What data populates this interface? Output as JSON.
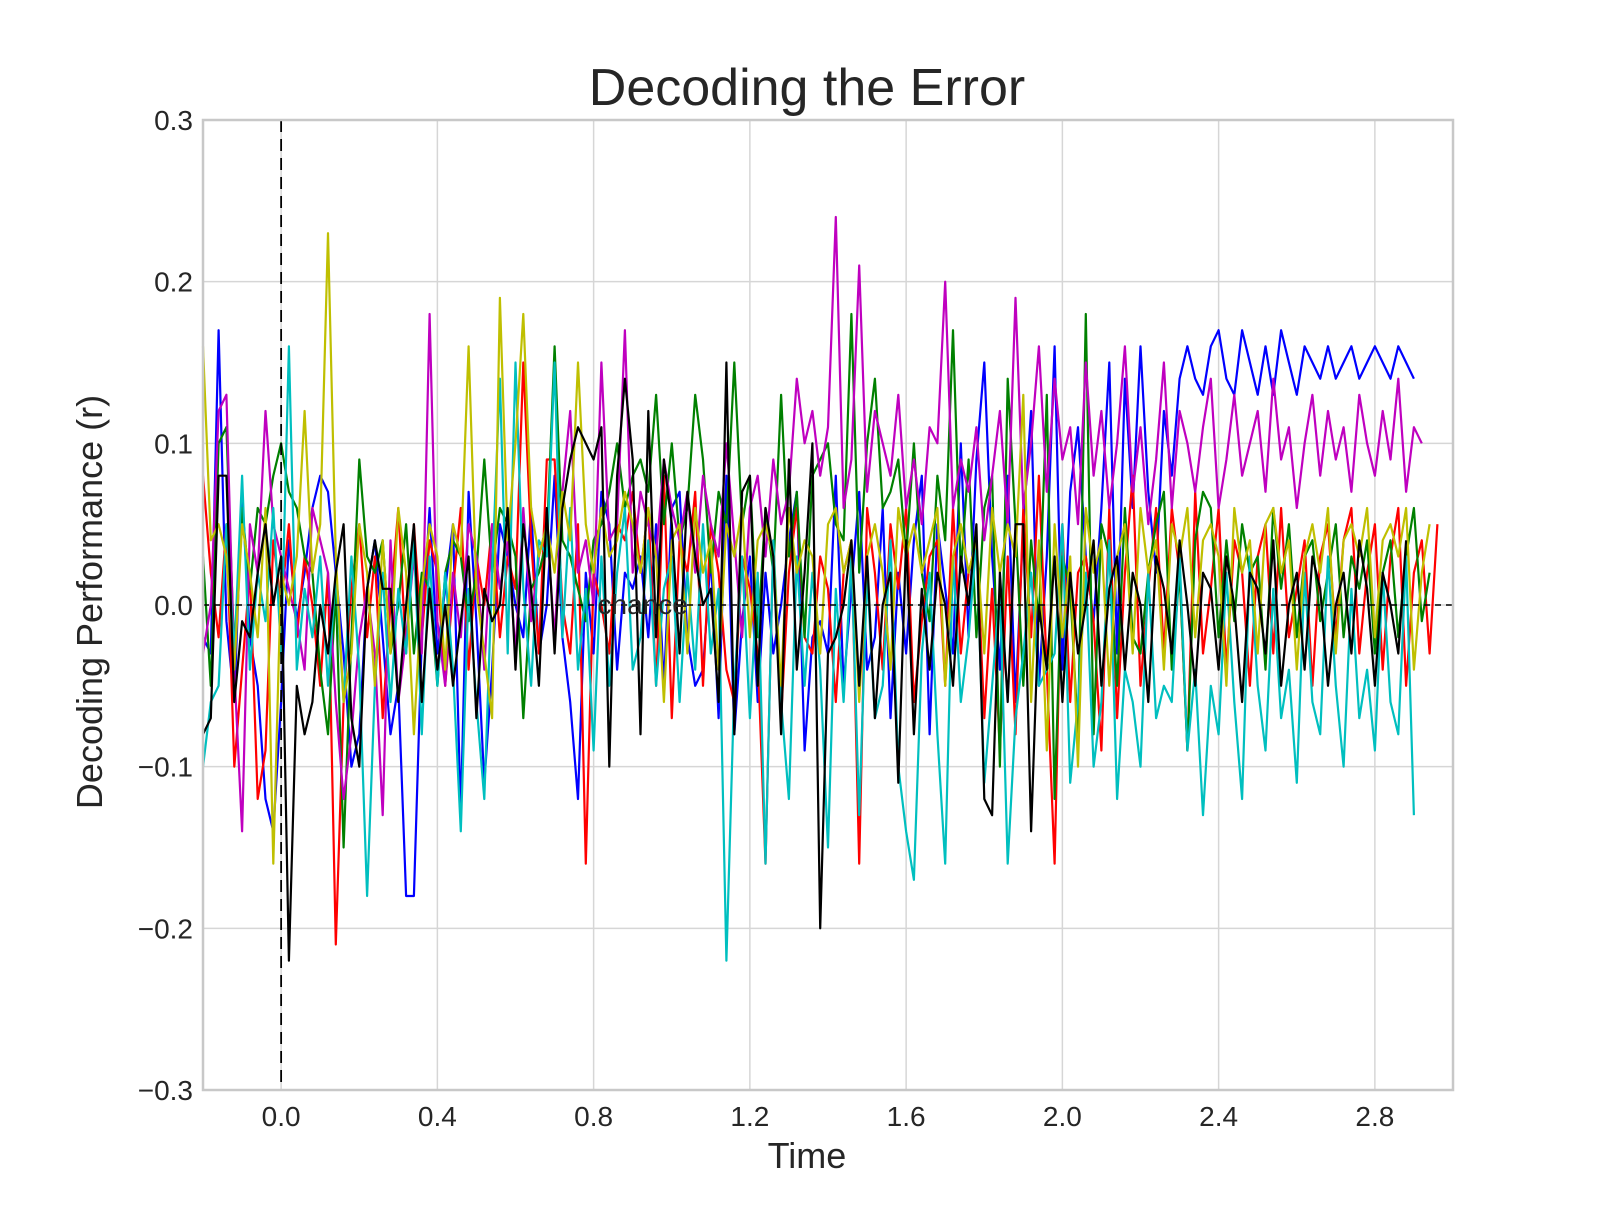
{
  "chart_data": {
    "type": "line",
    "title": "Decoding the Error",
    "xlabel": "Time",
    "ylabel": "Decoding Performance (r)",
    "xlim": [
      -0.2,
      3.0
    ],
    "ylim": [
      -0.3,
      0.3
    ],
    "xticks": [
      "0.0",
      "0.4",
      "0.8",
      "1.2",
      "1.6",
      "2.0",
      "2.4",
      "2.8"
    ],
    "xtick_values": [
      0.0,
      0.4,
      0.8,
      1.2,
      1.6,
      2.0,
      2.4,
      2.8
    ],
    "yticks": [
      "0.3",
      "0.2",
      "0.1",
      "0.0",
      "−0.1",
      "−0.2",
      "−0.3"
    ],
    "ytick_values": [
      0.3,
      0.2,
      0.1,
      0.0,
      -0.1,
      -0.2,
      -0.3
    ],
    "grid": true,
    "annotations": [
      {
        "text": "chance",
        "x": 0.81,
        "y": 0.0
      }
    ],
    "reference_lines": [
      {
        "orientation": "horizontal",
        "value": 0.0,
        "style": "dashed"
      },
      {
        "orientation": "vertical",
        "value": 0.0,
        "style": "dashed"
      }
    ],
    "x_start": -0.2,
    "x_step": 0.02,
    "series": [
      {
        "color": "#0000ff",
        "values": [
          -0.02,
          -0.03,
          0.17,
          -0.01,
          -0.06,
          0.07,
          -0.02,
          -0.05,
          -0.12,
          -0.14,
          -0.06,
          0.04,
          -0.01,
          0.02,
          0.06,
          0.08,
          0.07,
          0.02,
          -0.03,
          -0.1,
          -0.08,
          0.01,
          0.04,
          -0.02,
          -0.08,
          -0.05,
          -0.18,
          -0.18,
          -0.02,
          0.06,
          -0.03,
          0.01,
          0.05,
          -0.13,
          0.07,
          -0.01,
          -0.11,
          -0.04,
          0.05,
          0.03,
          0.0,
          -0.02,
          0.06,
          -0.03,
          0.0,
          0.08,
          -0.02,
          -0.06,
          -0.12,
          0.02,
          -0.03,
          0.07,
          0.05,
          -0.04,
          0.02,
          0.01,
          0.03,
          -0.02,
          0.05,
          -0.05,
          0.06,
          0.07,
          -0.02,
          -0.05,
          -0.04,
          0.03,
          -0.07,
          0.08,
          -0.08,
          -0.01,
          0.03,
          -0.06,
          0.02,
          -0.03,
          0.0,
          0.04,
          0.07,
          -0.09,
          -0.02,
          -0.01,
          -0.03,
          0.08,
          -0.05,
          0.01,
          0.07,
          -0.04,
          -0.02,
          0.06,
          -0.07,
          0.02,
          -0.03,
          0.04,
          0.08,
          -0.08,
          0.05,
          0.01,
          -0.03,
          0.1,
          -0.02,
          0.09,
          0.15,
          0.03,
          -0.04,
          0.08,
          -0.06,
          0.05,
          0.12,
          -0.05,
          0.03,
          0.16,
          -0.04,
          0.07,
          0.11,
          0.03,
          -0.01,
          0.06,
          0.15,
          -0.03,
          0.14,
          0.06,
          0.16,
          0.07,
          0.02,
          0.12,
          0.08,
          0.14,
          0.16,
          0.14,
          0.13,
          0.16,
          0.17,
          0.14,
          0.13,
          0.17,
          0.15,
          0.13,
          0.16,
          0.13,
          0.17,
          0.15,
          0.13,
          0.16,
          0.15,
          0.14,
          0.16,
          0.14,
          0.15,
          0.16,
          0.14,
          0.15,
          0.16,
          0.15,
          0.14,
          0.16,
          0.15,
          0.14
        ]
      },
      {
        "color": "#ff0000",
        "values": [
          0.08,
          0.02,
          -0.02,
          0.05,
          -0.1,
          -0.04,
          0.02,
          -0.12,
          -0.09,
          0.04,
          0.0,
          0.05,
          -0.02,
          0.03,
          0.0,
          -0.05,
          0.02,
          -0.21,
          -0.06,
          0.01,
          0.05,
          -0.02,
          0.03,
          -0.07,
          0.0,
          0.06,
          -0.03,
          0.05,
          -0.02,
          0.04,
          0.02,
          -0.05,
          0.01,
          0.06,
          -0.04,
          0.03,
          0.0,
          0.05,
          -0.02,
          0.03,
          0.01,
          0.15,
          0.04,
          -0.03,
          0.09,
          0.09,
          0.0,
          -0.03,
          0.05,
          -0.16,
          0.02,
          0.0,
          -0.03,
          0.05,
          0.04,
          0.07,
          0.02,
          0.06,
          -0.05,
          0.08,
          -0.07,
          0.04,
          0.02,
          0.07,
          -0.05,
          0.05,
          0.02,
          -0.04,
          -0.06,
          0.03,
          0.01,
          -0.03,
          -0.16,
          0.04,
          -0.07,
          0.02,
          0.06,
          -0.02,
          -0.03,
          0.03,
          0.01,
          -0.06,
          0.02,
          0.04,
          -0.16,
          0.06,
          0.02,
          -0.04,
          0.05,
          0.01,
          0.06,
          -0.06,
          -0.01,
          0.03,
          0.04,
          -0.05,
          0.06,
          -0.03,
          0.02,
          0.04,
          -0.07,
          0.01,
          -0.09,
          0.03,
          -0.08,
          0.06,
          -0.02,
          0.08,
          -0.04,
          -0.16,
          0.05,
          -0.06,
          0.02,
          0.03,
          -0.01,
          -0.09,
          0.06,
          -0.07,
          0.02,
          0.08,
          -0.05,
          0.01,
          0.06,
          -0.03,
          0.06,
          0.02,
          -0.09,
          0.07,
          -0.03,
          0.01,
          0.06,
          -0.04,
          0.04,
          0.02,
          -0.05,
          0.03,
          0.05,
          -0.03,
          0.06,
          -0.02,
          0.01,
          0.04,
          -0.05,
          0.03,
          0.05,
          -0.02,
          0.04,
          0.06,
          -0.03,
          0.02,
          0.05,
          -0.04,
          0.03,
          0.06,
          -0.05,
          0.02,
          0.04,
          -0.03,
          0.05
        ]
      },
      {
        "color": "#008000",
        "values": [
          0.03,
          -0.05,
          0.1,
          0.11,
          -0.03,
          0.06,
          0.01,
          0.06,
          0.05,
          0.08,
          0.1,
          0.07,
          0.06,
          0.03,
          0.02,
          -0.04,
          -0.08,
          0.01,
          -0.15,
          -0.02,
          0.09,
          0.03,
          0.02,
          0.04,
          -0.03,
          0.0,
          0.05,
          -0.03,
          0.02,
          0.01,
          -0.05,
          0.02,
          0.04,
          0.03,
          -0.01,
          0.02,
          0.09,
          0.02,
          0.06,
          0.05,
          0.03,
          -0.07,
          0.01,
          0.02,
          0.04,
          0.16,
          0.04,
          0.03,
          0.01,
          -0.01,
          0.04,
          0.05,
          0.07,
          0.1,
          0.06,
          0.08,
          0.09,
          0.07,
          0.13,
          0.05,
          0.1,
          0.04,
          0.06,
          0.13,
          0.09,
          0.02,
          0.07,
          0.05,
          0.15,
          0.05,
          0.08,
          -0.02,
          0.06,
          0.02,
          0.13,
          0.03,
          0.07,
          -0.02,
          0.08,
          0.09,
          0.1,
          0.05,
          0.04,
          0.18,
          0.02,
          0.1,
          0.14,
          0.06,
          0.07,
          0.09,
          0.03,
          0.1,
          0.02,
          -0.01,
          0.08,
          0.04,
          0.17,
          0.02,
          0.09,
          -0.02,
          0.06,
          0.08,
          -0.1,
          0.14,
          0.05,
          -0.05,
          0.04,
          -0.01,
          0.13,
          -0.12,
          0.03,
          0.01,
          -0.08,
          0.18,
          -0.08,
          0.05,
          0.03,
          -0.05,
          0.06,
          -0.02,
          -0.03,
          0.02,
          0.05,
          0.07,
          -0.04,
          0.02,
          -0.09,
          0.04,
          0.07,
          0.06,
          -0.02,
          0.04,
          -0.01,
          0.05,
          0.02,
          0.03,
          -0.04,
          0.06,
          0.01,
          0.05,
          -0.02,
          0.03,
          0.04,
          -0.01,
          0.02,
          0.05,
          -0.02,
          0.03,
          0.01,
          0.04,
          -0.03,
          0.02,
          0.04,
          -0.02,
          0.03,
          0.06,
          -0.01,
          0.02
        ]
      },
      {
        "color": "#bf00bf",
        "values": [
          -0.03,
          0.0,
          0.12,
          0.13,
          -0.04,
          -0.14,
          0.05,
          0.02,
          0.12,
          0.05,
          0.03,
          0.01,
          -0.01,
          -0.04,
          0.06,
          0.04,
          0.02,
          -0.06,
          -0.12,
          -0.08,
          -0.02,
          0.01,
          -0.03,
          -0.13,
          0.04,
          -0.06,
          -0.02,
          0.03,
          -0.03,
          0.18,
          -0.01,
          -0.05,
          0.02,
          -0.02,
          0.05,
          0.03,
          -0.04,
          0.05,
          0.01,
          0.04,
          -0.03,
          0.06,
          -0.01,
          0.03,
          0.05,
          -0.02,
          0.07,
          0.12,
          0.02,
          0.04,
          0.0,
          0.15,
          0.04,
          0.05,
          0.17,
          0.02,
          0.07,
          0.05,
          0.03,
          0.09,
          0.06,
          0.04,
          0.07,
          0.02,
          0.08,
          0.05,
          0.03,
          0.1,
          0.04,
          -0.02,
          0.06,
          0.08,
          0.03,
          0.09,
          0.05,
          0.07,
          0.14,
          0.1,
          0.12,
          0.08,
          0.11,
          0.24,
          0.06,
          0.09,
          0.21,
          0.07,
          0.12,
          0.1,
          0.08,
          0.13,
          0.06,
          0.09,
          0.05,
          0.11,
          0.1,
          0.2,
          0.06,
          0.09,
          0.07,
          0.11,
          0.04,
          0.08,
          0.12,
          0.05,
          0.19,
          0.06,
          0.1,
          0.16,
          0.07,
          0.14,
          0.09,
          0.11,
          0.05,
          0.15,
          0.08,
          0.12,
          0.06,
          0.1,
          0.16,
          0.07,
          0.11,
          0.05,
          0.09,
          0.15,
          0.06,
          0.12,
          0.1,
          0.07,
          0.11,
          0.14,
          0.06,
          0.09,
          0.13,
          0.08,
          0.1,
          0.12,
          0.07,
          0.14,
          0.09,
          0.11,
          0.06,
          0.1,
          0.13,
          0.08,
          0.12,
          0.09,
          0.11,
          0.07,
          0.13,
          0.1,
          0.08,
          0.12,
          0.09,
          0.14,
          0.07,
          0.11,
          0.1
        ]
      },
      {
        "color": "#00bfbf",
        "values": [
          -0.1,
          -0.06,
          -0.05,
          0.05,
          -0.03,
          0.08,
          -0.04,
          0.02,
          -0.01,
          0.06,
          -0.03,
          0.16,
          -0.04,
          0.01,
          -0.02,
          0.03,
          -0.05,
          0.02,
          -0.06,
          0.03,
          -0.04,
          -0.18,
          -0.05,
          0.02,
          -0.06,
          0.01,
          -0.03,
          0.04,
          -0.08,
          0.03,
          -0.05,
          0.02,
          -0.04,
          -0.14,
          0.01,
          -0.06,
          -0.12,
          0.02,
          0.14,
          -0.03,
          0.15,
          0.01,
          -0.05,
          0.04,
          0.03,
          0.15,
          -0.02,
          0.06,
          -0.04,
          0.01,
          -0.09,
          0.03,
          -0.05,
          0.02,
          0.06,
          -0.04,
          -0.02,
          0.04,
          -0.05,
          0.01,
          0.03,
          -0.06,
          0.02,
          -0.04,
          0.05,
          -0.03,
          0.01,
          -0.22,
          -0.05,
          0.03,
          -0.07,
          0.02,
          -0.16,
          0.04,
          -0.06,
          -0.12,
          0.03,
          -0.05,
          0.02,
          -0.04,
          -0.15,
          0.01,
          -0.06,
          0.03,
          -0.13,
          0.02,
          -0.07,
          -0.05,
          0.04,
          -0.1,
          -0.14,
          -0.17,
          -0.03,
          0.02,
          -0.08,
          -0.16,
          0.03,
          -0.06,
          -0.02,
          0.04,
          -0.11,
          -0.05,
          0.01,
          -0.16,
          -0.07,
          -0.03,
          0.02,
          -0.05,
          -0.04,
          -0.03,
          0.05,
          -0.11,
          -0.06,
          0.02,
          -0.1,
          -0.06,
          0.04,
          -0.12,
          -0.04,
          -0.06,
          -0.1,
          0.02,
          -0.07,
          -0.05,
          -0.06,
          0.03,
          -0.09,
          -0.04,
          -0.13,
          -0.05,
          -0.08,
          0.02,
          -0.06,
          -0.12,
          0.03,
          -0.05,
          -0.09,
          0.01,
          -0.07,
          -0.04,
          -0.11,
          0.02,
          -0.06,
          -0.08,
          0.03,
          -0.05,
          -0.1,
          0.01,
          -0.07,
          -0.04,
          -0.09,
          0.02,
          -0.06,
          -0.08,
          0.03,
          -0.13
        ]
      },
      {
        "color": "#bfbf00",
        "values": [
          0.16,
          0.04,
          0.05,
          0.03,
          -0.04,
          0.05,
          0.02,
          -0.02,
          0.06,
          -0.16,
          0.02,
          0.0,
          0.03,
          0.12,
          0.02,
          0.05,
          0.23,
          0.03,
          -0.06,
          -0.03,
          0.05,
          0.02,
          -0.05,
          0.04,
          -0.03,
          0.06,
          0.02,
          -0.08,
          0.01,
          0.05,
          0.03,
          -0.04,
          0.05,
          0.03,
          0.16,
          0.01,
          -0.03,
          -0.07,
          0.19,
          0.04,
          0.1,
          0.18,
          0.06,
          0.03,
          0.05,
          0.02,
          0.07,
          0.04,
          0.15,
          0.05,
          0.02,
          0.06,
          0.03,
          0.04,
          0.07,
          0.05,
          0.02,
          0.06,
          0.03,
          -0.06,
          0.04,
          0.05,
          -0.03,
          0.06,
          0.02,
          0.04,
          -0.04,
          0.05,
          0.03,
          0.06,
          -0.02,
          0.04,
          0.05,
          0.03,
          -0.05,
          0.06,
          0.02,
          0.04,
          0.03,
          -0.03,
          0.05,
          0.06,
          0.02,
          0.04,
          -0.06,
          0.03,
          0.05,
          0.02,
          -0.04,
          0.06,
          0.03,
          0.05,
          0.02,
          0.04,
          0.06,
          -0.05,
          0.03,
          0.05,
          0.02,
          0.04,
          -0.03,
          0.06,
          0.02,
          0.05,
          0.03,
          0.13,
          -0.06,
          0.04,
          -0.09,
          0.05,
          -0.02,
          0.03,
          -0.1,
          0.06,
          0.02,
          0.04,
          -0.05,
          0.03,
          0.05,
          -0.03,
          0.06,
          0.02,
          0.04,
          -0.04,
          0.05,
          0.03,
          0.06,
          -0.02,
          0.04,
          0.05,
          0.03,
          -0.05,
          0.06,
          0.02,
          0.04,
          -0.03,
          0.05,
          0.06,
          0.02,
          0.04,
          -0.04,
          0.03,
          0.05,
          0.02,
          0.06,
          -0.03,
          0.04,
          0.05,
          0.03,
          0.06,
          -0.02,
          0.04,
          0.05,
          0.03,
          0.06,
          -0.04,
          0.02,
          0.05
        ]
      },
      {
        "color": "#000000",
        "values": [
          -0.08,
          -0.07,
          0.08,
          0.08,
          -0.06,
          -0.01,
          -0.02,
          0.02,
          0.05,
          0.0,
          0.03,
          -0.22,
          -0.05,
          -0.08,
          -0.06,
          0.0,
          -0.03,
          0.02,
          0.05,
          -0.07,
          -0.1,
          0.01,
          0.04,
          0.01,
          0.01,
          -0.06,
          0.0,
          0.05,
          -0.06,
          0.01,
          -0.04,
          0.0,
          -0.05,
          -0.01,
          0.03,
          -0.07,
          0.01,
          -0.01,
          0.0,
          0.06,
          -0.04,
          0.05,
          0.01,
          -0.05,
          0.06,
          -0.03,
          0.06,
          0.09,
          0.11,
          0.1,
          0.09,
          0.11,
          -0.1,
          0.08,
          0.14,
          0.09,
          -0.08,
          0.12,
          -0.02,
          0.09,
          0.05,
          -0.03,
          0.07,
          0.03,
          0.0,
          0.01,
          -0.06,
          0.15,
          -0.08,
          0.07,
          0.08,
          -0.05,
          0.06,
          0.03,
          -0.08,
          0.09,
          -0.04,
          0.02,
          0.1,
          -0.2,
          -0.03,
          -0.02,
          0.0,
          0.04,
          -0.05,
          0.03,
          -0.07,
          0.0,
          0.02,
          -0.11,
          0.04,
          -0.08,
          0.01,
          -0.04,
          0.02,
          0.0,
          -0.05,
          0.03,
          0.0,
          0.05,
          -0.12,
          -0.13,
          0.02,
          -0.06,
          0.05,
          0.05,
          -0.14,
          0.0,
          -0.04,
          0.03,
          -0.06,
          0.02,
          -0.03,
          0.0,
          0.04,
          -0.05,
          0.01,
          0.03,
          -0.04,
          0.02,
          0.0,
          -0.06,
          0.03,
          0.01,
          -0.03,
          0.04,
          0.0,
          -0.05,
          0.02,
          0.01,
          -0.04,
          0.03,
          0.0,
          -0.06,
          0.02,
          0.01,
          -0.03,
          0.04,
          -0.05,
          0.0,
          0.02,
          -0.04,
          0.03,
          0.01,
          -0.05,
          0.0,
          0.02,
          -0.03,
          0.04,
          0.01,
          -0.05,
          0.02,
          0.0,
          -0.03,
          0.04
        ]
      }
    ]
  }
}
